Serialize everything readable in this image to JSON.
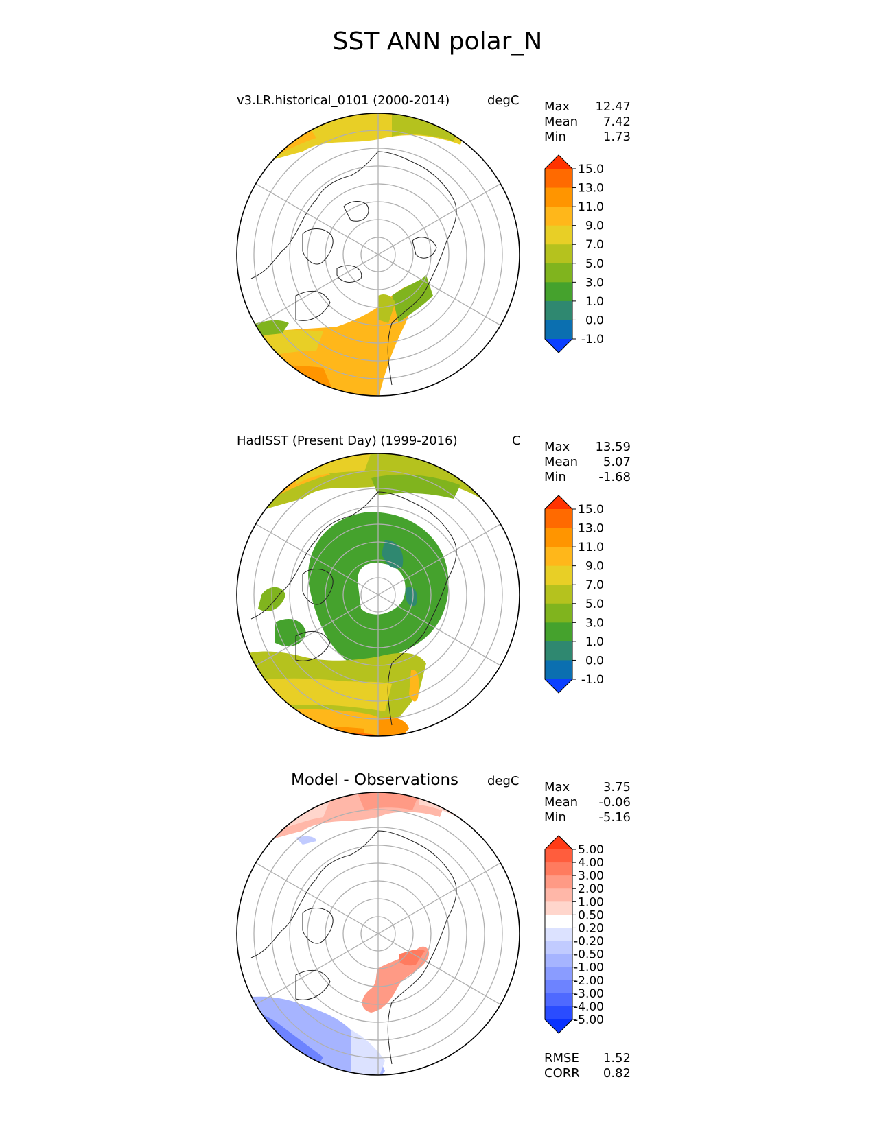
{
  "title": "SST ANN polar_N",
  "panels": [
    {
      "id": "test",
      "title": "v3.LR.historical_0101 (2000-2014)",
      "units": "degC",
      "stats": [
        {
          "label": "Max",
          "value": "12.47"
        },
        {
          "label": "Mean",
          "value": "7.42"
        },
        {
          "label": "Min",
          "value": "1.73"
        }
      ]
    },
    {
      "id": "ref",
      "title": "HadISST (Present Day) (1999-2016)",
      "units": "C",
      "stats": [
        {
          "label": "Max",
          "value": "13.59"
        },
        {
          "label": "Mean",
          "value": "5.07"
        },
        {
          "label": "Min",
          "value": "-1.68"
        }
      ]
    },
    {
      "id": "diff",
      "title": "Model - Observations",
      "units": "degC",
      "stats": [
        {
          "label": "Max",
          "value": "3.75"
        },
        {
          "label": "Mean",
          "value": "-0.06"
        },
        {
          "label": "Min",
          "value": "-5.16"
        }
      ],
      "extra_stats": [
        {
          "label": "RMSE",
          "value": "1.52"
        },
        {
          "label": "CORR",
          "value": "0.82"
        }
      ]
    }
  ],
  "chart_data": {
    "type": "heatmap",
    "projection": "north-polar-stereographic",
    "colorbars": {
      "field": {
        "ticks": [
          "15.0",
          "13.0",
          "11.0",
          "9.0",
          "7.0",
          "5.0",
          "3.0",
          "1.0",
          "0.0",
          "-1.0"
        ],
        "colors": [
          "#ff3300",
          "#ff6a00",
          "#ff9500",
          "#ffb71a",
          "#e8cf26",
          "#b5c21e",
          "#80b41e",
          "#45a22d",
          "#2f8870",
          "#0b6fb0",
          "#0b3fff"
        ],
        "extend": "both"
      },
      "diff": {
        "ticks": [
          "5.00",
          "4.00",
          "3.00",
          "2.00",
          "1.00",
          "0.50",
          "0.20",
          "-0.20",
          "-0.50",
          "-1.00",
          "-2.00",
          "-3.00",
          "-4.00",
          "-5.00"
        ],
        "colors": [
          "#ff3b16",
          "#ff5d3d",
          "#ff7b5f",
          "#ff9a85",
          "#ffb7a8",
          "#ffd6cc",
          "#ffffff",
          "#dce2ff",
          "#c1cbff",
          "#a6b4ff",
          "#8a9cff",
          "#6d83ff",
          "#4f69ff",
          "#2a4cff",
          "#0a32ff"
        ],
        "extend": "both"
      }
    }
  }
}
